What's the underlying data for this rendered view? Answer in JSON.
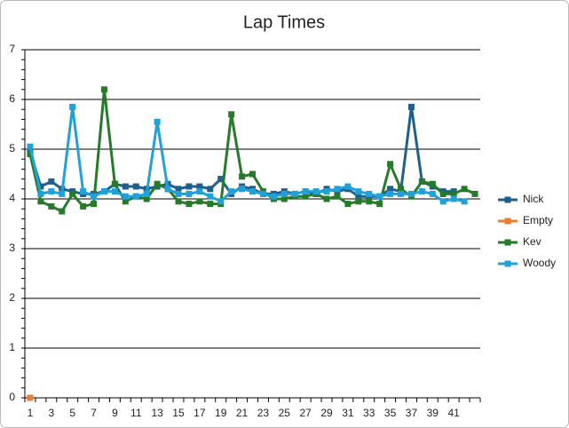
{
  "chart_data": {
    "type": "line",
    "title": "Lap Times",
    "categories": [
      1,
      null,
      3,
      null,
      5,
      null,
      7,
      null,
      9,
      null,
      11,
      null,
      13,
      null,
      15,
      null,
      17,
      null,
      19,
      null,
      21,
      null,
      23,
      null,
      25,
      null,
      27,
      null,
      29,
      null,
      31,
      null,
      33,
      null,
      35,
      null,
      37,
      null,
      39,
      null,
      41,
      null,
      null
    ],
    "ylim": [
      0,
      7
    ],
    "yticks": [
      0,
      1,
      2,
      3,
      4,
      5,
      6,
      7
    ],
    "grid": true,
    "legend": "right",
    "series": [
      {
        "name": "Nick",
        "color": "#1f5f8b",
        "values": [
          4.95,
          4.25,
          4.35,
          4.2,
          4.15,
          4.1,
          4.1,
          4.15,
          4.3,
          4.25,
          4.25,
          4.2,
          4.25,
          4.3,
          4.2,
          4.25,
          4.25,
          4.2,
          4.4,
          4.1,
          4.25,
          4.2,
          4.1,
          4.1,
          4.15,
          4.1,
          4.15,
          4.1,
          4.2,
          4.15,
          4.2,
          4.05,
          4.05,
          4.05,
          4.2,
          4.15,
          5.85,
          4.35,
          4.25,
          4.15,
          4.15,
          null,
          null
        ]
      },
      {
        "name": "Empty",
        "color": "#ed7d31",
        "values": [
          0,
          null,
          null,
          null,
          null,
          null,
          null,
          null,
          null,
          null,
          null,
          null,
          null,
          null,
          null,
          null,
          null,
          null,
          null,
          null,
          null,
          null,
          null,
          null,
          null,
          null,
          null,
          null,
          null,
          null,
          null,
          null,
          null,
          null,
          null,
          null,
          null,
          null,
          null,
          null,
          null,
          null,
          null
        ]
      },
      {
        "name": "Kev",
        "color": "#267a2a",
        "values": [
          4.9,
          3.95,
          3.85,
          3.75,
          4.1,
          3.85,
          3.9,
          6.2,
          4.3,
          3.95,
          4.05,
          4.0,
          4.3,
          4.2,
          3.95,
          3.9,
          3.95,
          3.9,
          3.9,
          5.7,
          4.45,
          4.5,
          4.15,
          4.0,
          4.0,
          4.05,
          4.05,
          4.1,
          4.0,
          4.05,
          3.9,
          3.95,
          3.95,
          3.9,
          4.7,
          4.2,
          4.05,
          4.35,
          4.3,
          4.1,
          4.1,
          4.2,
          4.1
        ]
      },
      {
        "name": "Woody",
        "color": "#22a0d8",
        "values": [
          5.05,
          4.1,
          4.15,
          4.1,
          5.85,
          4.15,
          4.05,
          4.15,
          4.15,
          4.05,
          4.05,
          4.1,
          5.55,
          4.2,
          4.1,
          4.1,
          4.15,
          4.05,
          3.95,
          4.15,
          4.2,
          4.15,
          4.1,
          4.05,
          4.1,
          4.1,
          4.15,
          4.15,
          4.15,
          4.2,
          4.25,
          4.15,
          4.1,
          4.05,
          4.1,
          4.1,
          4.1,
          4.15,
          4.1,
          3.95,
          4.0,
          3.95,
          null
        ]
      }
    ]
  }
}
